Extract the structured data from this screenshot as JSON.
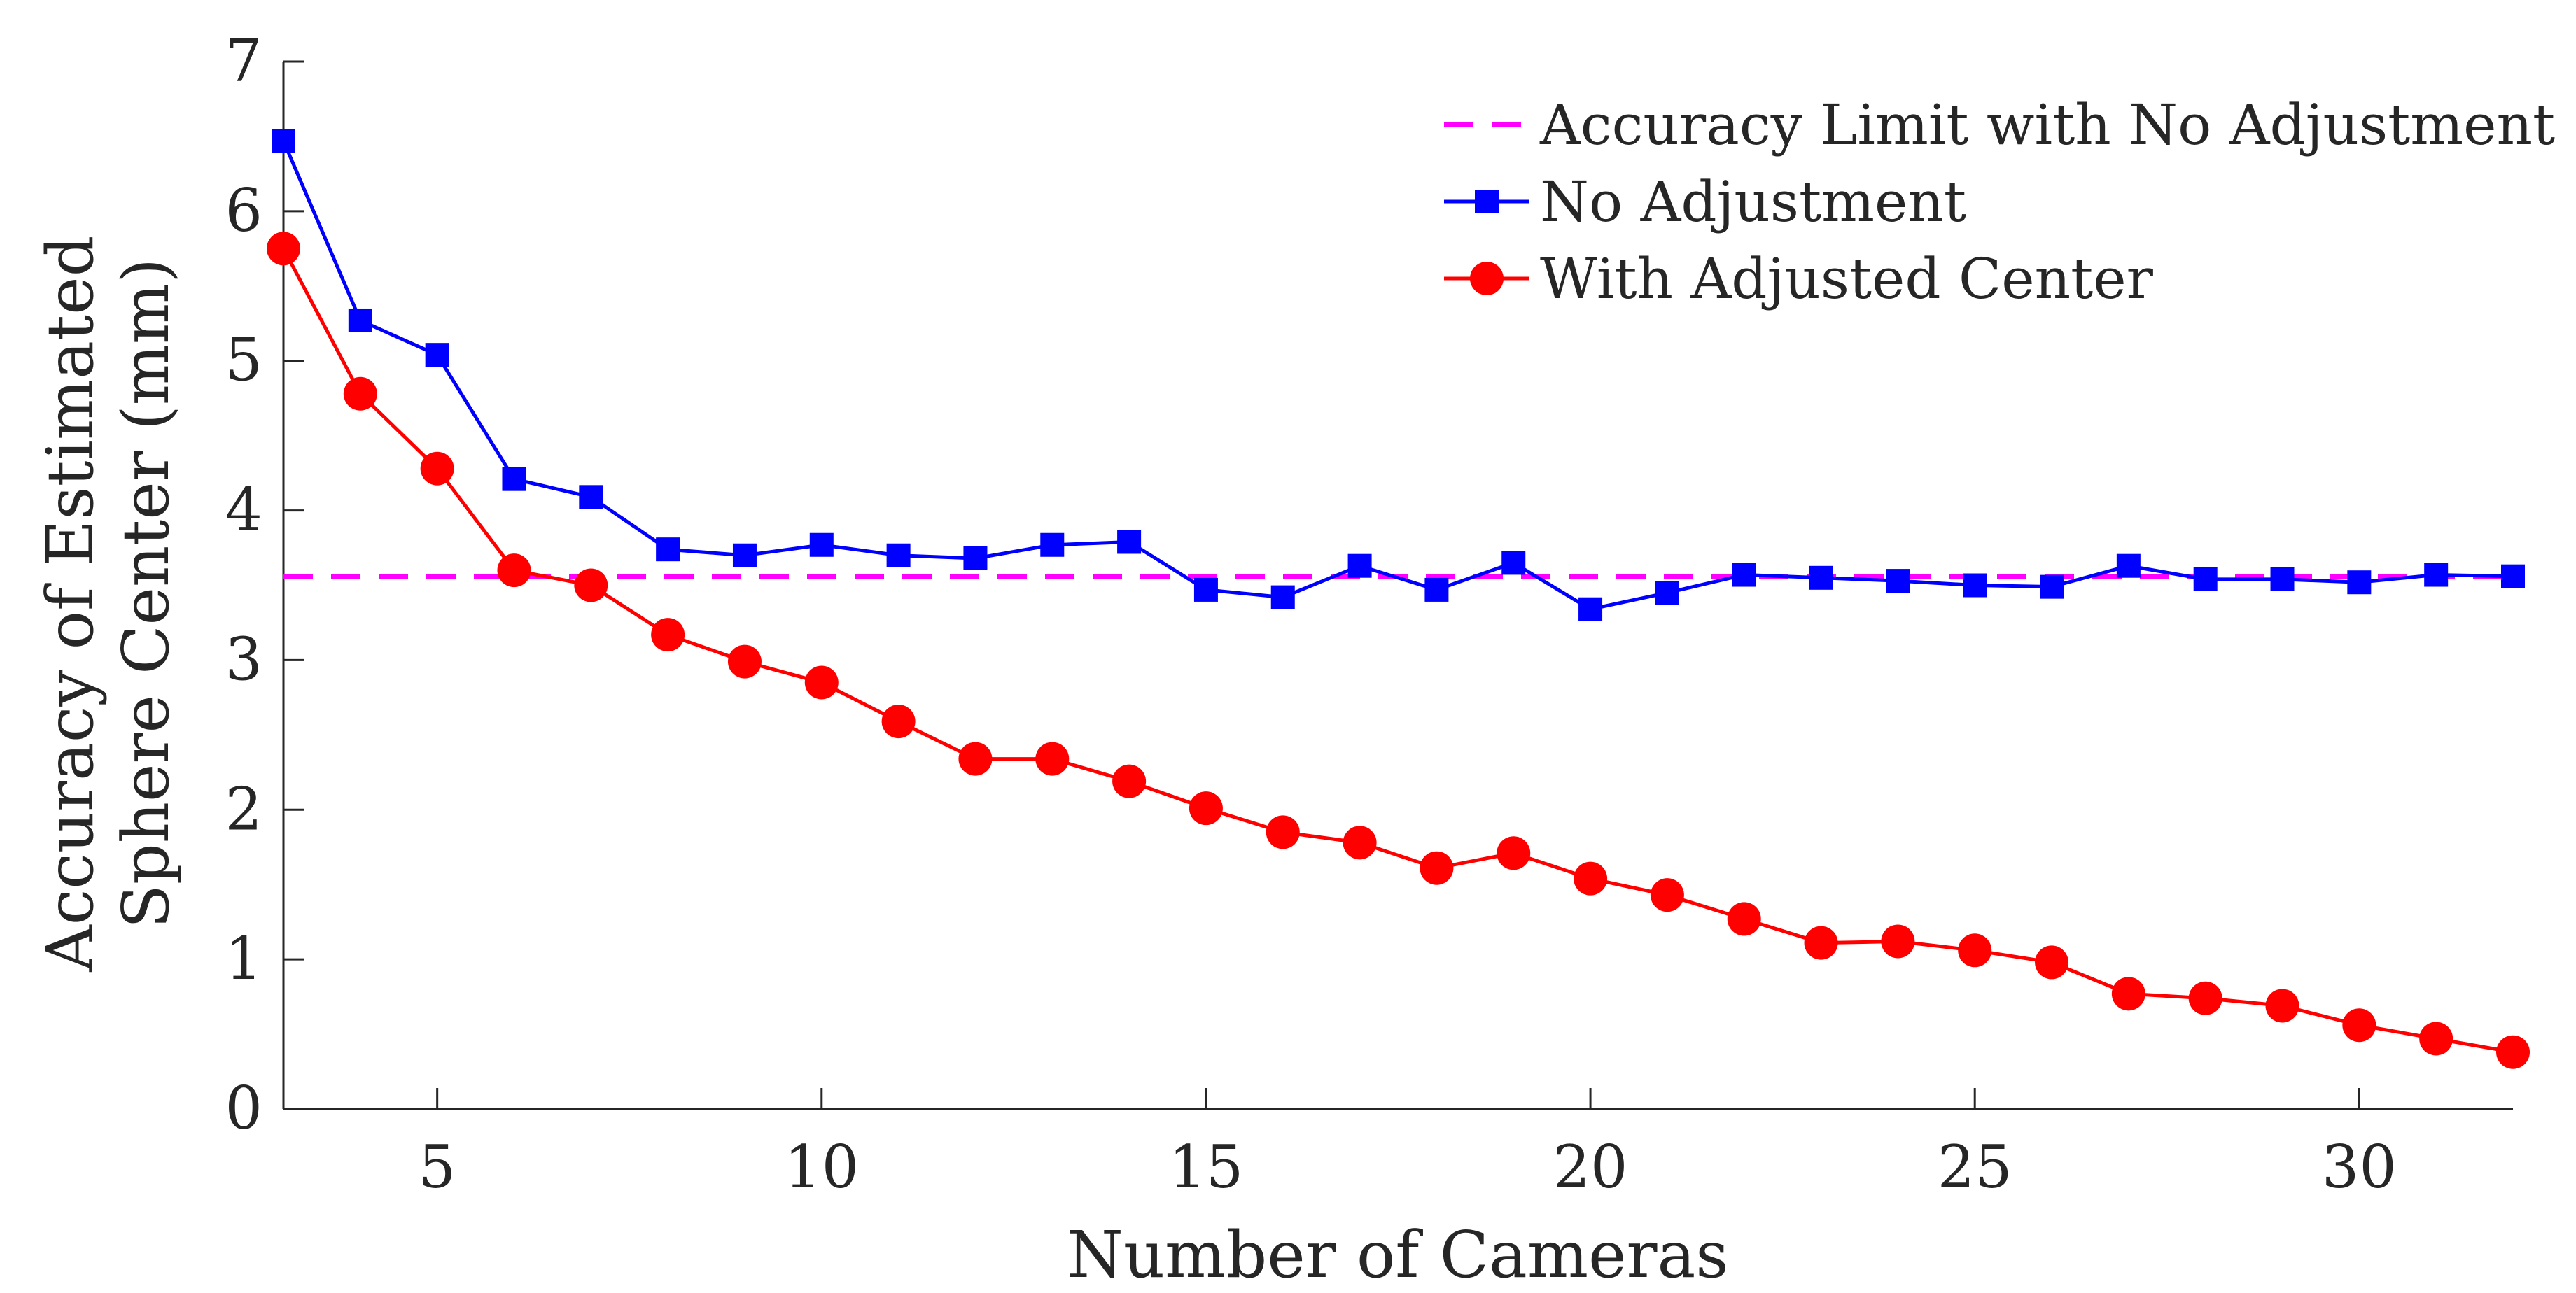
{
  "chart_data": {
    "type": "line",
    "title": "",
    "xlabel": "Number of Cameras",
    "ylabel_lines": [
      "Accuracy of Estimated",
      "Sphere Center (mm)"
    ],
    "xlim": [
      3,
      32
    ],
    "ylim": [
      0,
      7
    ],
    "x_ticks": [
      5,
      10,
      15,
      20,
      25,
      30
    ],
    "y_ticks": [
      0,
      1,
      2,
      3,
      4,
      5,
      6,
      7
    ],
    "grid": false,
    "legend_position": "top-right",
    "x": [
      3,
      4,
      5,
      6,
      7,
      8,
      9,
      10,
      11,
      12,
      13,
      14,
      15,
      16,
      17,
      18,
      19,
      20,
      21,
      22,
      23,
      24,
      25,
      26,
      27,
      28,
      29,
      30,
      31,
      32
    ],
    "series": [
      {
        "name": "Accuracy Limit with No Adjustment",
        "style": "dashed",
        "color": "#ff00ff",
        "x": [
          3,
          32
        ],
        "values": [
          3.56,
          3.56
        ]
      },
      {
        "name": "No Adjustment",
        "style": "line-square",
        "color": "#0000ff",
        "values": [
          6.47,
          5.27,
          5.04,
          4.21,
          4.09,
          3.74,
          3.7,
          3.77,
          3.7,
          3.68,
          3.77,
          3.79,
          3.47,
          3.42,
          3.63,
          3.47,
          3.65,
          3.34,
          3.45,
          3.57,
          3.55,
          3.53,
          3.5,
          3.49,
          3.63,
          3.54,
          3.54,
          3.52,
          3.57,
          3.56
        ]
      },
      {
        "name": "With Adjusted Center",
        "style": "line-circle",
        "color": "#ff0000",
        "values": [
          5.75,
          4.78,
          4.28,
          3.6,
          3.5,
          3.17,
          2.99,
          2.85,
          2.59,
          2.34,
          2.34,
          2.19,
          2.01,
          1.85,
          1.78,
          1.61,
          1.71,
          1.54,
          1.43,
          1.27,
          1.11,
          1.12,
          1.06,
          0.98,
          0.77,
          0.74,
          0.69,
          0.56,
          0.47,
          0.38
        ]
      }
    ]
  }
}
